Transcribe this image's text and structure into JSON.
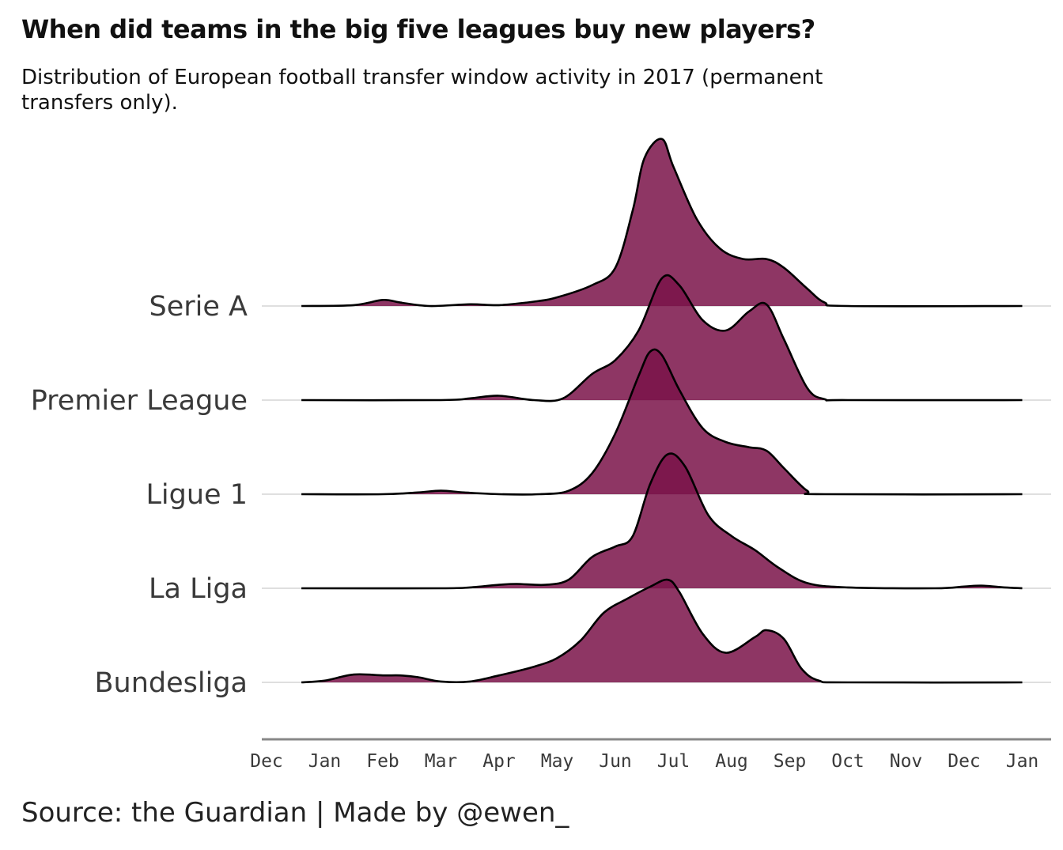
{
  "header": {
    "title": "When did teams in the big five leagues buy new players?",
    "subtitle": "Distribution of European football transfer window activity in 2017 (permanent transfers only)."
  },
  "footer": {
    "caption": "Source: the Guardian   |   Made by @ewen_"
  },
  "colors": {
    "fill": "#7a1349",
    "outline": "#000000",
    "gridline": "#cccccc",
    "axis": "#888888"
  },
  "chart_data": {
    "type": "ridgeline",
    "title": "When did teams in the big five leagues buy new players?",
    "subtitle": "Distribution of European football transfer window activity in 2017 (permanent transfers only).",
    "xlabel": "",
    "ylabel": "",
    "x_ticks": [
      "Dec",
      "Jan",
      "Feb",
      "Mar",
      "Apr",
      "May",
      "Jun",
      "Jul",
      "Aug",
      "Sep",
      "Oct",
      "Nov",
      "Dec",
      "Jan"
    ],
    "x_unit": "month index (0 = Dec 2016, 13 = Jan 2018)",
    "grid": "horizontal baselines",
    "density_scale": "relative density, 1.0 = Serie A peak",
    "series": [
      {
        "name": "Serie A",
        "points": [
          [
            0.6,
            0
          ],
          [
            1.5,
            0.005
          ],
          [
            2.0,
            0.035
          ],
          [
            2.3,
            0.02
          ],
          [
            2.8,
            0
          ],
          [
            3.5,
            0.01
          ],
          [
            4.0,
            0.005
          ],
          [
            4.6,
            0.025
          ],
          [
            5.0,
            0.05
          ],
          [
            5.6,
            0.12
          ],
          [
            6.0,
            0.22
          ],
          [
            6.3,
            0.55
          ],
          [
            6.5,
            0.85
          ],
          [
            6.8,
            0.96
          ],
          [
            7.0,
            0.8
          ],
          [
            7.4,
            0.5
          ],
          [
            7.8,
            0.33
          ],
          [
            8.2,
            0.27
          ],
          [
            8.6,
            0.27
          ],
          [
            8.9,
            0.22
          ],
          [
            9.3,
            0.1
          ],
          [
            9.6,
            0.02
          ],
          [
            10.0,
            0
          ],
          [
            13.0,
            0
          ]
        ]
      },
      {
        "name": "Premier League",
        "points": [
          [
            0.6,
            0
          ],
          [
            3.0,
            0
          ],
          [
            3.5,
            0.01
          ],
          [
            4.0,
            0.025
          ],
          [
            4.6,
            0
          ],
          [
            5.1,
            0.01
          ],
          [
            5.6,
            0.15
          ],
          [
            6.0,
            0.23
          ],
          [
            6.4,
            0.4
          ],
          [
            6.8,
            0.7
          ],
          [
            7.1,
            0.66
          ],
          [
            7.5,
            0.46
          ],
          [
            7.9,
            0.4
          ],
          [
            8.3,
            0.51
          ],
          [
            8.6,
            0.55
          ],
          [
            8.9,
            0.35
          ],
          [
            9.3,
            0.07
          ],
          [
            9.6,
            0.005
          ],
          [
            10.0,
            0
          ],
          [
            13.0,
            0
          ]
        ]
      },
      {
        "name": "Ligue 1",
        "points": [
          [
            0.6,
            0
          ],
          [
            2.0,
            0
          ],
          [
            2.6,
            0.01
          ],
          [
            3.0,
            0.02
          ],
          [
            3.4,
            0.01
          ],
          [
            4.0,
            0
          ],
          [
            4.7,
            0
          ],
          [
            5.2,
            0.02
          ],
          [
            5.6,
            0.12
          ],
          [
            6.0,
            0.35
          ],
          [
            6.4,
            0.68
          ],
          [
            6.6,
            0.82
          ],
          [
            6.8,
            0.8
          ],
          [
            7.1,
            0.6
          ],
          [
            7.5,
            0.38
          ],
          [
            7.9,
            0.3
          ],
          [
            8.3,
            0.27
          ],
          [
            8.6,
            0.25
          ],
          [
            8.9,
            0.15
          ],
          [
            9.3,
            0.02
          ],
          [
            9.6,
            0
          ],
          [
            13.0,
            0
          ]
        ]
      },
      {
        "name": "La Liga",
        "points": [
          [
            0.6,
            0
          ],
          [
            3.0,
            0
          ],
          [
            3.5,
            0.005
          ],
          [
            4.0,
            0.02
          ],
          [
            4.3,
            0.025
          ],
          [
            4.8,
            0.02
          ],
          [
            5.2,
            0.05
          ],
          [
            5.6,
            0.18
          ],
          [
            6.0,
            0.24
          ],
          [
            6.3,
            0.3
          ],
          [
            6.6,
            0.6
          ],
          [
            6.9,
            0.77
          ],
          [
            7.2,
            0.7
          ],
          [
            7.6,
            0.42
          ],
          [
            8.0,
            0.3
          ],
          [
            8.4,
            0.22
          ],
          [
            8.8,
            0.12
          ],
          [
            9.3,
            0.03
          ],
          [
            10.0,
            0.005
          ],
          [
            11.5,
            0
          ],
          [
            12.0,
            0.01
          ],
          [
            12.3,
            0.015
          ],
          [
            12.7,
            0.005
          ],
          [
            13.0,
            0
          ]
        ]
      },
      {
        "name": "Bundesliga",
        "points": [
          [
            0.6,
            0
          ],
          [
            1.0,
            0.01
          ],
          [
            1.5,
            0.045
          ],
          [
            2.0,
            0.04
          ],
          [
            2.3,
            0.04
          ],
          [
            2.6,
            0.03
          ],
          [
            3.0,
            0.005
          ],
          [
            3.5,
            0.005
          ],
          [
            4.0,
            0.04
          ],
          [
            4.6,
            0.09
          ],
          [
            5.0,
            0.14
          ],
          [
            5.4,
            0.24
          ],
          [
            5.8,
            0.4
          ],
          [
            6.2,
            0.48
          ],
          [
            6.6,
            0.55
          ],
          [
            6.9,
            0.59
          ],
          [
            7.1,
            0.52
          ],
          [
            7.5,
            0.28
          ],
          [
            7.9,
            0.17
          ],
          [
            8.4,
            0.26
          ],
          [
            8.6,
            0.3
          ],
          [
            8.9,
            0.25
          ],
          [
            9.2,
            0.08
          ],
          [
            9.5,
            0.01
          ],
          [
            10.0,
            0
          ],
          [
            13.0,
            0
          ]
        ]
      }
    ]
  }
}
